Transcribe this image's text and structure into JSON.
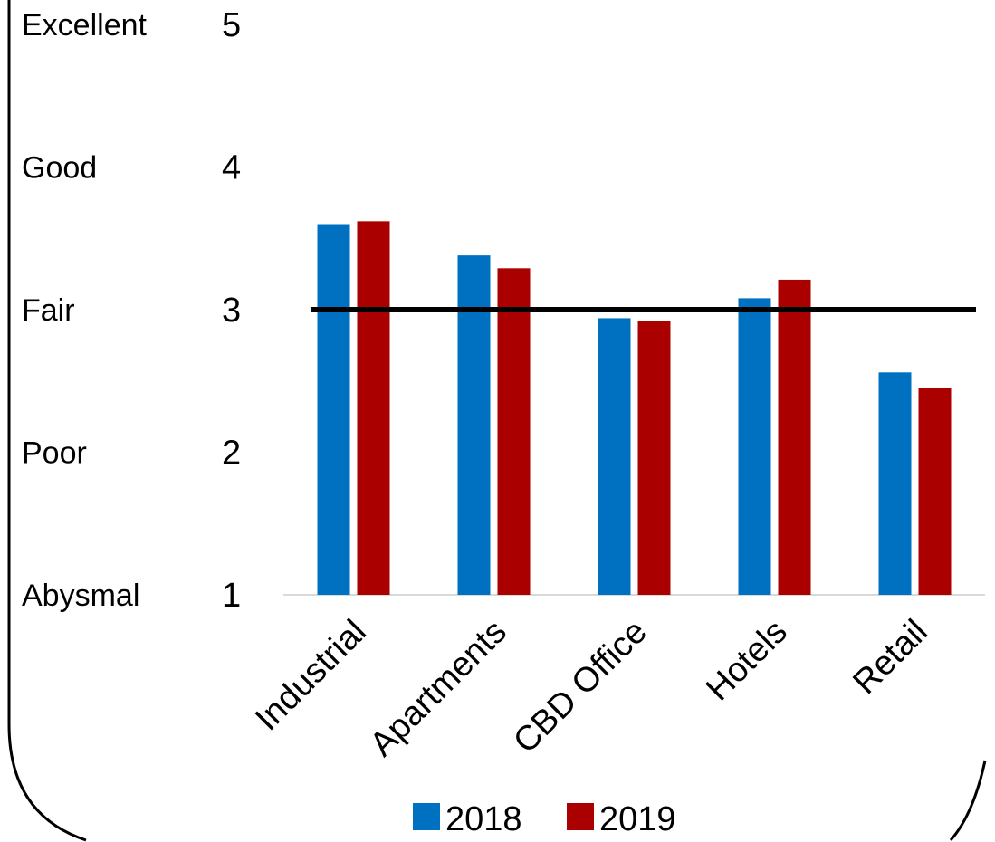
{
  "chart_data": {
    "type": "bar",
    "title": "",
    "xlabel": "",
    "ylabel": "",
    "ylim": [
      1,
      5
    ],
    "yticks": [
      {
        "value": 1,
        "label": "1",
        "rating": "Abysmal"
      },
      {
        "value": 2,
        "label": "2",
        "rating": "Poor"
      },
      {
        "value": 3,
        "label": "3",
        "rating": "Fair"
      },
      {
        "value": 4,
        "label": "4",
        "rating": "Good"
      },
      {
        "value": 5,
        "label": "5",
        "rating": "Excellent"
      }
    ],
    "categories": [
      "Industrial",
      "Apartments",
      "CBD Office",
      "Hotels",
      "Retail"
    ],
    "series": [
      {
        "name": "2018",
        "color": "#0070C0",
        "values": [
          3.6,
          3.38,
          2.94,
          3.08,
          2.56
        ]
      },
      {
        "name": "2019",
        "color": "#AA0000",
        "values": [
          3.62,
          3.29,
          2.92,
          3.21,
          2.45
        ]
      }
    ],
    "reference_line": {
      "value": 3,
      "color": "#000000"
    },
    "legend_position": "bottom",
    "grid": false
  }
}
